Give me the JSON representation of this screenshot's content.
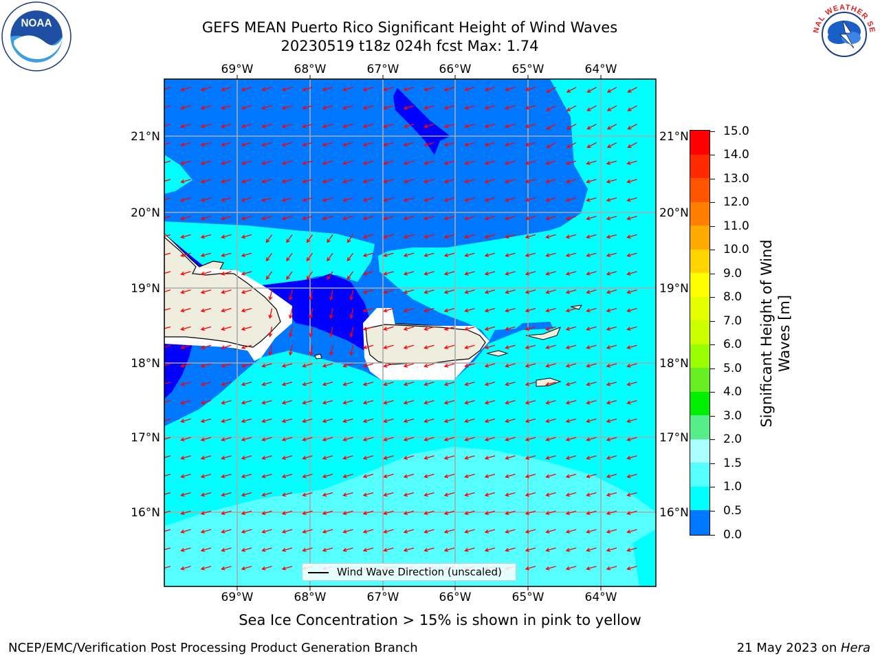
{
  "header": {
    "title_line1": "GEFS MEAN Puerto Rico Significant Height of Wind Waves",
    "title_line2": "20230519 t18z 024h fcst   Max: 1.74"
  },
  "logos": {
    "left": "noaa-logo",
    "left_text": "NOAA",
    "right": "nws-logo",
    "right_text": "NATIONAL WEATHER SERVICE"
  },
  "map": {
    "lon_labels": [
      "69°W",
      "68°W",
      "67°W",
      "66°W",
      "65°W",
      "64°W"
    ],
    "lat_labels": [
      "21°N",
      "20°N",
      "19°N",
      "18°N",
      "17°N",
      "16°N"
    ],
    "arrow_color": "#ff0000",
    "land_color": "#efedde",
    "legend_label": "Wind Wave Direction (unscaled)"
  },
  "colorbar": {
    "label": "Significant Height of Wind Waves [m]",
    "ticks": [
      "15.0",
      "14.0",
      "13.0",
      "12.0",
      "11.0",
      "10.0",
      "9.0",
      "8.0",
      "7.0",
      "6.0",
      "5.0",
      "4.0",
      "3.0",
      "2.0",
      "1.5",
      "1.0",
      "0.5",
      "0.0"
    ],
    "colors": [
      "#ff0000",
      "#ff2a00",
      "#ff5500",
      "#ff8000",
      "#ffaa00",
      "#ffd400",
      "#ffff00",
      "#e6ff00",
      "#ccff00",
      "#99ff00",
      "#66ee22",
      "#00ee00",
      "#55ee88",
      "#aaffff",
      "#55ffff",
      "#00ffff",
      "#0077ff",
      "#0000ff"
    ]
  },
  "subtitle": "Sea Ice Concentration > 15% is shown in pink to yellow",
  "footer": {
    "left": "NCEP/EMC/Verification Post Processing Product Generation Branch",
    "right_date": "21 May 2023 on ",
    "right_machine": "Hera"
  }
}
